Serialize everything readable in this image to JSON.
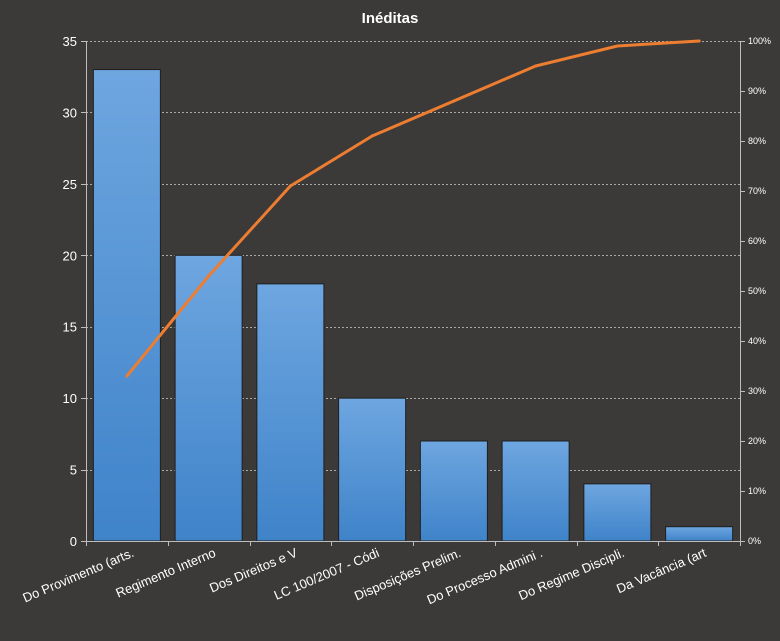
{
  "chart_data": {
    "type": "bar",
    "title": "Inéditas",
    "categories": [
      "Do Provimento  (arts.",
      "Regimento Interno",
      "Dos Direitos e V",
      "LC 100/2007 - Códi",
      "Disposições Prelim.",
      "Do Processo Admini .",
      "Do Regime Discipli.",
      "Da Vacância (art"
    ],
    "series": [
      {
        "type": "bar",
        "values": [
          33,
          20,
          18,
          10,
          7,
          7,
          4,
          1
        ],
        "color": "#5b9bd5"
      },
      {
        "type": "line",
        "axis": "secondary",
        "values": [
          33,
          53,
          71,
          81,
          88,
          95,
          99,
          100
        ],
        "color": "#ed7d31"
      }
    ],
    "ylim": [
      0,
      35
    ],
    "yticks": [
      "0",
      "5",
      "10",
      "15",
      "20",
      "25",
      "30",
      "35"
    ],
    "y2lim": [
      0,
      100
    ],
    "y2ticks": [
      "0%",
      "10%",
      "20%",
      "30%",
      "40%",
      "50%",
      "60%",
      "70%",
      "80%",
      "90%",
      "100%"
    ],
    "grid": true,
    "background": "#3b3a38",
    "text_color": "#ffffff"
  }
}
